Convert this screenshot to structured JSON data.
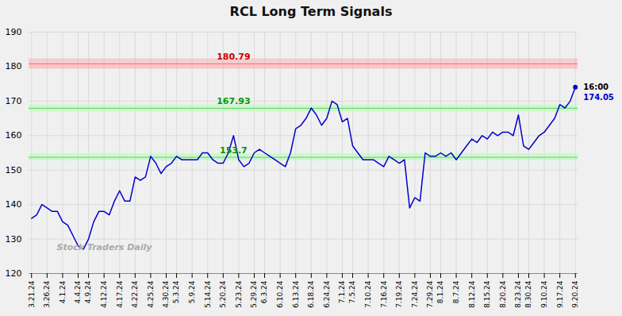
{
  "chart_data": {
    "type": "line",
    "title": "RCL Long Term Signals",
    "categories": [
      "3.21.24",
      null,
      null,
      "3.26.24",
      null,
      null,
      "4.1.24",
      null,
      null,
      "4.4.24",
      null,
      "4.9.24",
      null,
      null,
      "4.12.24",
      null,
      null,
      "4.17.24",
      null,
      null,
      "4.22.24",
      null,
      null,
      "4.25.24",
      null,
      null,
      "4.30.24",
      null,
      "5.3.24",
      null,
      null,
      "5.9.24",
      null,
      null,
      "5.14.24",
      null,
      null,
      "5.20.24",
      null,
      null,
      "5.23.24",
      null,
      null,
      "5.29.24",
      null,
      "6.3.24",
      null,
      null,
      "6.10.24",
      null,
      null,
      "6.13.24",
      null,
      null,
      "6.18.24",
      null,
      null,
      "6.24.24",
      null,
      null,
      "7.1.24",
      null,
      "7.5.24",
      null,
      null,
      "7.10.24",
      null,
      null,
      "7.16.24",
      null,
      null,
      "7.19.24",
      null,
      null,
      "7.24.24",
      null,
      null,
      "7.29.24",
      null,
      "8.1.24",
      null,
      null,
      "8.7.24",
      null,
      null,
      "8.12.24",
      null,
      null,
      "8.15.24",
      null,
      null,
      "8.20.24",
      null,
      null,
      "8.23.24",
      null,
      "8.30.24",
      null,
      null,
      "9.10.24",
      null,
      null,
      "9.17.24",
      null,
      null,
      "9.20.24"
    ],
    "values": [
      136,
      137,
      140,
      139,
      138,
      138,
      135,
      134,
      131,
      128,
      127,
      130,
      135,
      138,
      138,
      137,
      141,
      144,
      141,
      141,
      148,
      147,
      148,
      154,
      152,
      149,
      151,
      152,
      154,
      153,
      153,
      153,
      153,
      155,
      155,
      153,
      152,
      152,
      155,
      160,
      153,
      151,
      152,
      155,
      156,
      155,
      154,
      153,
      152,
      151,
      155,
      162,
      163,
      165,
      168,
      166,
      163,
      165,
      170,
      169,
      164,
      165,
      157,
      155,
      153,
      153,
      153,
      152,
      151,
      154,
      153,
      152,
      153,
      139,
      142,
      141,
      155,
      154,
      154,
      155,
      154,
      155,
      153,
      155,
      157,
      159,
      158,
      160,
      159,
      161,
      160,
      161,
      161,
      160,
      166,
      157,
      156,
      158,
      160,
      161,
      163,
      165,
      169,
      168,
      170,
      174.05
    ],
    "color": "#0000cc",
    "ylim": [
      120,
      190
    ],
    "yticks": [
      120,
      130,
      140,
      150,
      160,
      170,
      180,
      190
    ],
    "grid": true,
    "grid_color": "#cccccc",
    "background": "#f0f0f0",
    "hlines": [
      {
        "value": 180.79,
        "color": "#ff6666",
        "band": [
          179.29,
          182.29
        ],
        "band_color": "#ffaaaa",
        "label": "180.79",
        "label_color": "#cc0000"
      },
      {
        "value": 167.93,
        "color": "#66cc66",
        "band": [
          166.93,
          168.93
        ],
        "band_color": "#aaffaa",
        "label": "167.93",
        "label_color": "#009900"
      },
      {
        "value": 153.7,
        "color": "#66cc66",
        "band": [
          152.7,
          154.7
        ],
        "band_color": "#aaffaa",
        "label": "153.7",
        "label_color": "#009900"
      }
    ],
    "end_labels": [
      {
        "text": "16:00",
        "color": "#000000"
      },
      {
        "text": "174.05",
        "color": "#0000cc"
      }
    ],
    "watermark": {
      "text": "Stock Traders Daily",
      "color": "#aaaaaa"
    }
  }
}
